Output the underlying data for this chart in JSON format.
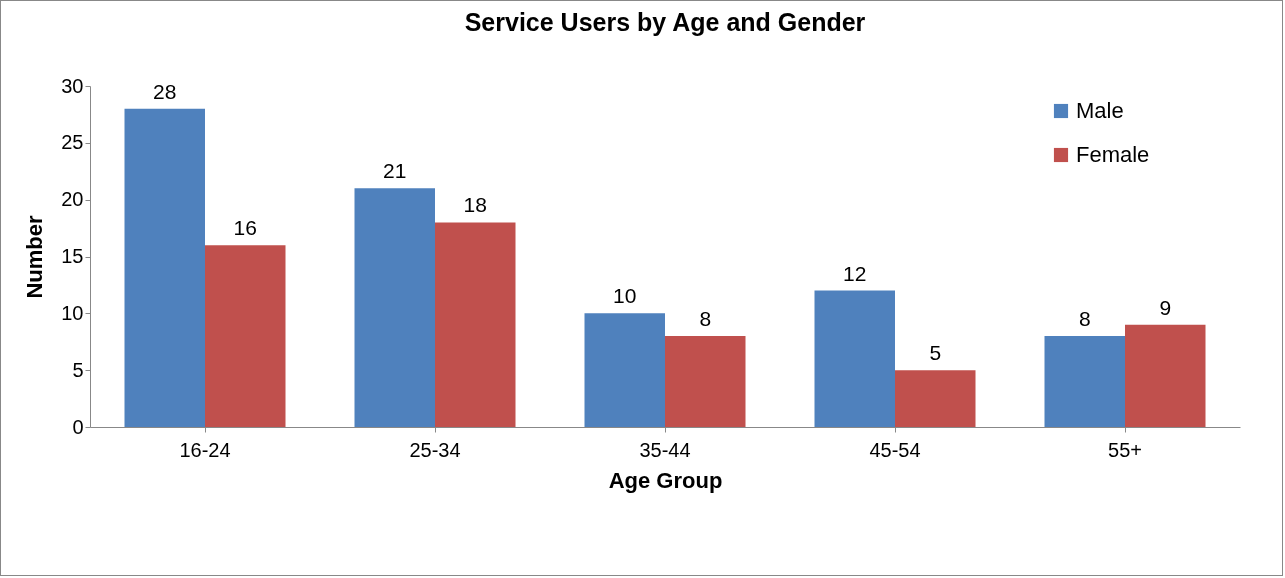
{
  "chart_data": {
    "type": "bar",
    "title": "Service Users by Age and Gender",
    "xlabel": "Age Group",
    "ylabel": "Number",
    "categories": [
      "16-24",
      "25-34",
      "35-44",
      "45-54",
      "55+"
    ],
    "series": [
      {
        "name": "Male",
        "color": "#4f81bd",
        "values": [
          28,
          21,
          10,
          12,
          8
        ]
      },
      {
        "name": "Female",
        "color": "#c0504d",
        "values": [
          16,
          18,
          8,
          5,
          9
        ]
      }
    ],
    "ylim": [
      0,
      30
    ],
    "yticks": [
      0,
      5,
      10,
      15,
      20,
      25,
      30
    ],
    "grid": false,
    "legend": "top right",
    "data_labels": true
  }
}
